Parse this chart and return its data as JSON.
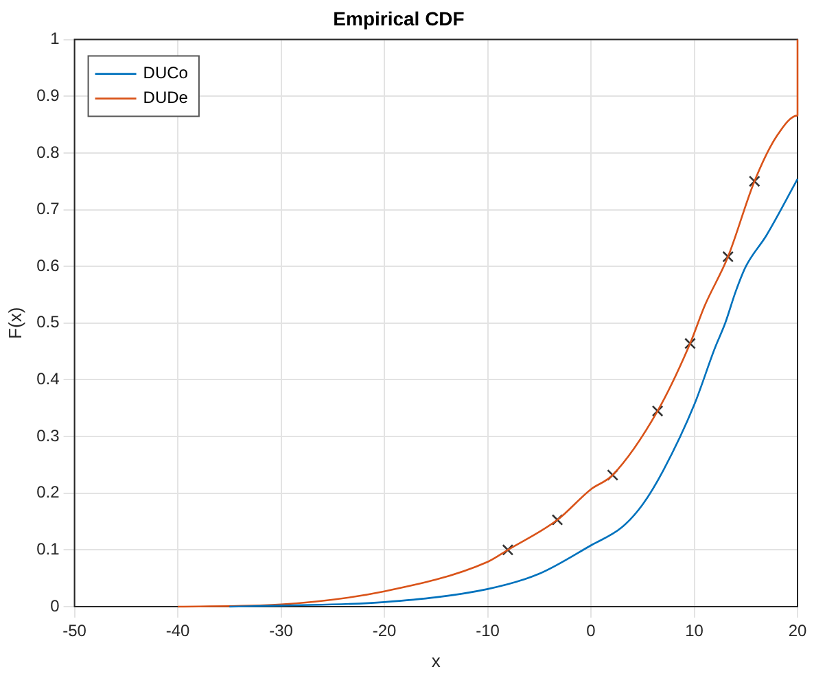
{
  "chart_data": {
    "type": "line",
    "title": "Empirical CDF",
    "xlabel": "x",
    "ylabel": "F(x)",
    "xlim": [
      -50,
      20
    ],
    "xticks": [
      -50,
      -40,
      -30,
      -20,
      -10,
      0,
      10,
      20
    ],
    "ylim": [
      0,
      1
    ],
    "yticks": [
      0,
      0.1,
      0.2,
      0.3,
      0.4,
      0.5,
      0.6,
      0.7,
      0.8,
      0.9,
      1
    ],
    "grid": true,
    "legend": "top left",
    "marker": "none",
    "line_style": "solid",
    "series": [
      {
        "name": "DUCo",
        "color": "#0072bd",
        "x": [
          -35,
          -30,
          -20,
          -10,
          -5,
          0,
          3,
          5,
          7,
          10,
          12,
          13,
          14,
          15,
          17,
          20
        ],
        "values": [
          0,
          0.002,
          0.008,
          0.031,
          0.058,
          0.108,
          0.14,
          0.18,
          0.24,
          0.356,
          0.456,
          0.5,
          0.555,
          0.6,
          0.655,
          0.754
        ]
      },
      {
        "name": "DUDe",
        "color": "#d95319",
        "x": [
          -40,
          -30,
          -20,
          -10,
          -8.05,
          -3.25,
          0,
          2.1,
          6.45,
          9.6,
          11,
          13.27,
          15.83,
          18,
          20,
          20
        ],
        "values": [
          0,
          0.004,
          0.027,
          0.079,
          0.1,
          0.153,
          0.207,
          0.232,
          0.345,
          0.464,
          0.53,
          0.617,
          0.75,
          0.83,
          0.866,
          1
        ]
      },
      {
        "type": "scatter",
        "marker": "cross",
        "color": "#333333",
        "x": [
          -8.05,
          -3.25,
          2.1,
          6.45,
          9.6,
          13.27,
          15.83
        ],
        "values": [
          0.1,
          0.153,
          0.232,
          0.345,
          0.464,
          0.617,
          0.75
        ]
      }
    ]
  }
}
